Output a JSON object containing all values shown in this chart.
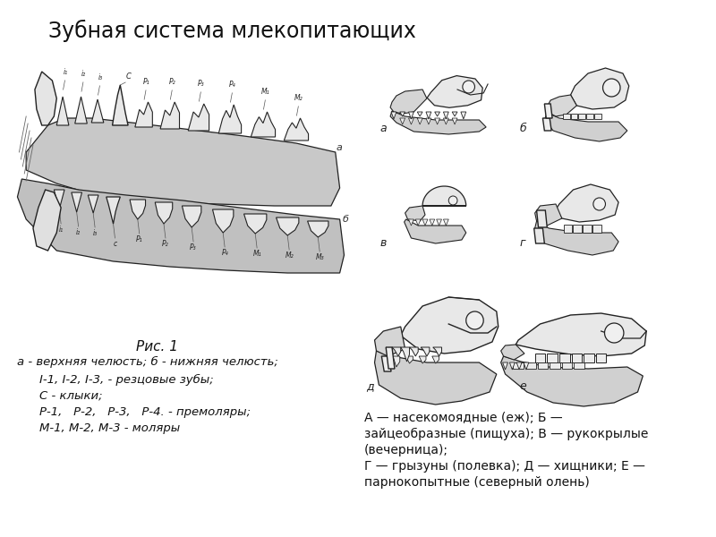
{
  "title": "Зубная система млекопитающих",
  "title_fontsize": 17,
  "fig1_label": "Рис. 1",
  "caption_left_line1": "а - верхняя челюсть; б - нижняя челюсть;",
  "caption_left_lines": [
    "I-1, I-2, I-3, - резцовые зубы;",
    "С - клыки;",
    "Р-1,   Р-2,   Р-3,   Р-4. - премоляры;",
    "М-1, М-2, М-3 - моляры"
  ],
  "caption_right_lines": [
    "А — насекомоядные (еж); Б —",
    "зайцеобразные (пищуха); В — рукокрылые",
    "(вечерница);",
    "Г — грызуны (полевка); Д — хищники; Е —",
    "парнокопытные (северный олень)"
  ],
  "skull_labels": [
    "а",
    "б",
    "в",
    "г",
    "д",
    "е"
  ],
  "background_color": "#ffffff",
  "text_color": "#111111",
  "sketch_color": "#222222",
  "sketch_fill": "#e8e8e8",
  "sketch_fill2": "#d4d4d4"
}
